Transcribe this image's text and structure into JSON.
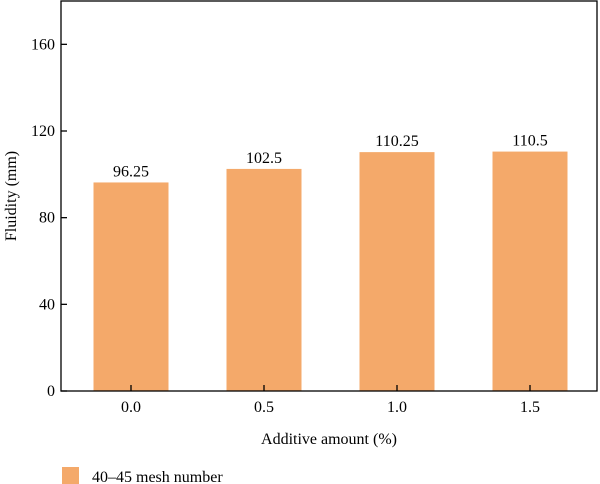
{
  "chart_data": {
    "type": "bar",
    "categories": [
      "0.0",
      "0.5",
      "1.0",
      "1.5"
    ],
    "series": [
      {
        "name": "40–45 mesh number",
        "values": [
          96.25,
          102.5,
          110.25,
          110.5
        ],
        "labels": [
          "96.25",
          "102.5",
          "110.25",
          "110.5"
        ],
        "color": "#f4a96a"
      }
    ],
    "xlabel": "Additive amount (%)",
    "ylabel": "Fluidity (mm)",
    "ylim": [
      0,
      180
    ],
    "yticks": [
      0,
      40,
      80,
      120,
      160
    ],
    "grid": false,
    "legend": "bottom-left"
  }
}
